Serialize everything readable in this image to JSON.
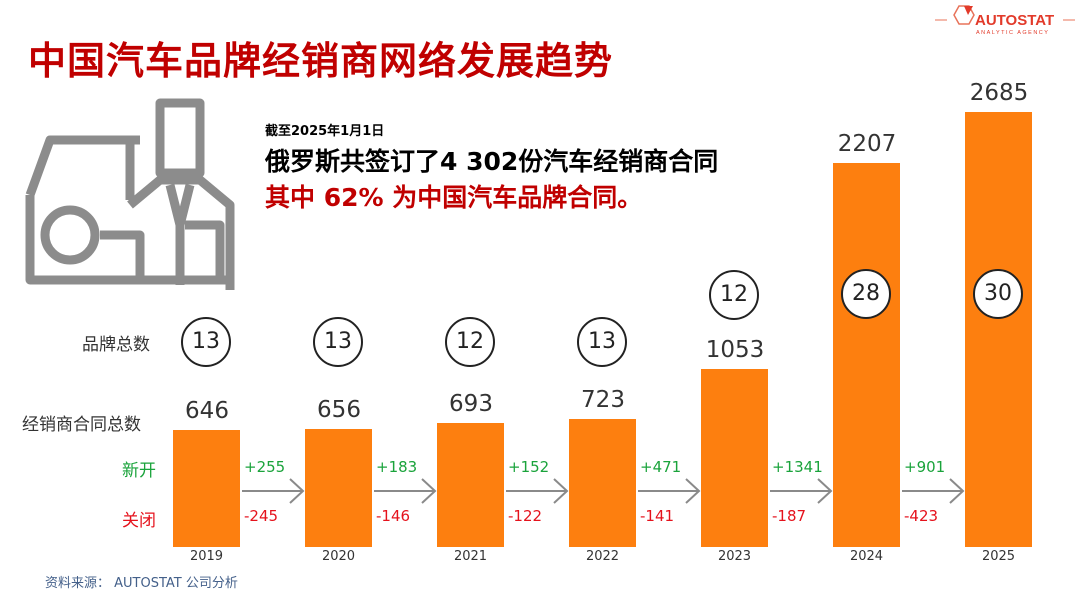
{
  "title": "中国汽车品牌经销商网络发展趋势",
  "logo": {
    "name": "AUTOSTAT",
    "tagline": "ANALYTIC AGENCY"
  },
  "headline": {
    "date": "截至2025年1月1日",
    "line1": "俄罗斯共签订了4 302份汽车经销商合同",
    "line2": "其中 62% 为中国汽车品牌合同。"
  },
  "row_labels": {
    "brands": "品牌总数",
    "contracts": "经销商合同总数",
    "opened": "新开",
    "closed": "关闭"
  },
  "source": "资料来源：  AUTOSTAT 公司分析",
  "colors": {
    "bar": "#fd7f0f",
    "title": "#c00000",
    "opened": "#1aa33b",
    "closed": "#e5121c"
  },
  "chart_data": {
    "type": "bar",
    "categories": [
      "2019",
      "2020",
      "2021",
      "2022",
      "2023",
      "2024",
      "2025"
    ],
    "values": [
      646,
      656,
      693,
      723,
      1053,
      2207,
      2685
    ],
    "brands": [
      13,
      13,
      12,
      13,
      12,
      28,
      30
    ],
    "opened": [
      "+255",
      "+183",
      "+152",
      "+471",
      "+1341",
      "+901"
    ],
    "closed": [
      "-245",
      "-146",
      "-122",
      "-141",
      "-187",
      "-423"
    ],
    "grid": false
  }
}
